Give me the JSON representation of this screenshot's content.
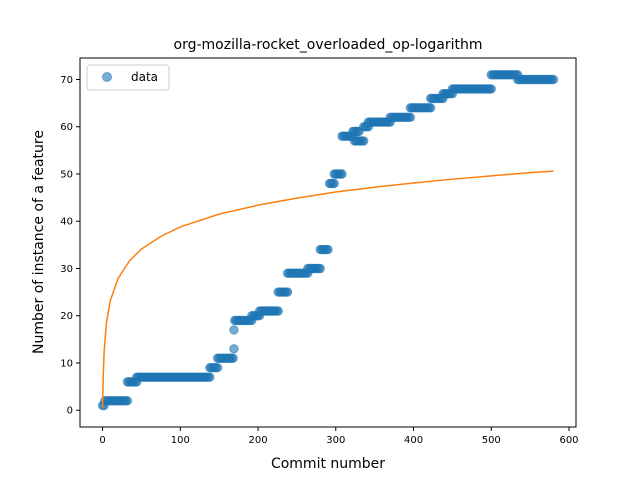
{
  "chart_data": {
    "type": "scatter",
    "title": "org-mozilla-rocket_overloaded_op-logarithm",
    "xlabel": "Commit number",
    "ylabel": "Number of instance of a feature",
    "xlim": [
      -29,
      609
    ],
    "ylim": [
      -3.55,
      74.55
    ],
    "xticks": [
      0,
      100,
      200,
      300,
      400,
      500,
      600
    ],
    "yticks": [
      0,
      10,
      20,
      30,
      40,
      50,
      60,
      70
    ],
    "grid": false,
    "legend": {
      "position": "top-left",
      "entries": [
        "data"
      ]
    },
    "series": [
      {
        "name": "data",
        "kind": "scatter",
        "color": "#1f77b4",
        "segments": [
          {
            "x_start": 0,
            "x_end": 2,
            "y": 1
          },
          {
            "x_start": 3,
            "x_end": 32,
            "y": 2
          },
          {
            "x_start": 32,
            "x_end": 44,
            "y": 6
          },
          {
            "x_start": 44,
            "x_end": 138,
            "y": 7
          },
          {
            "x_start": 138,
            "x_end": 148,
            "y": 9
          },
          {
            "x_start": 148,
            "x_end": 168,
            "y": 11
          },
          {
            "x_start": 169,
            "x_end": 169,
            "y": 13
          },
          {
            "x_start": 169,
            "x_end": 169,
            "y": 17
          },
          {
            "x_start": 170,
            "x_end": 192,
            "y": 19
          },
          {
            "x_start": 192,
            "x_end": 202,
            "y": 20
          },
          {
            "x_start": 202,
            "x_end": 226,
            "y": 21
          },
          {
            "x_start": 226,
            "x_end": 238,
            "y": 25
          },
          {
            "x_start": 238,
            "x_end": 264,
            "y": 29
          },
          {
            "x_start": 264,
            "x_end": 280,
            "y": 30
          },
          {
            "x_start": 280,
            "x_end": 290,
            "y": 34
          },
          {
            "x_start": 292,
            "x_end": 298,
            "y": 48
          },
          {
            "x_start": 298,
            "x_end": 308,
            "y": 50
          },
          {
            "x_start": 308,
            "x_end": 322,
            "y": 58
          },
          {
            "x_start": 322,
            "x_end": 330,
            "y": 59
          },
          {
            "x_start": 324,
            "x_end": 336,
            "y": 57
          },
          {
            "x_start": 336,
            "x_end": 342,
            "y": 60
          },
          {
            "x_start": 342,
            "x_end": 370,
            "y": 61
          },
          {
            "x_start": 370,
            "x_end": 396,
            "y": 62
          },
          {
            "x_start": 396,
            "x_end": 422,
            "y": 64
          },
          {
            "x_start": 422,
            "x_end": 438,
            "y": 66
          },
          {
            "x_start": 438,
            "x_end": 450,
            "y": 67
          },
          {
            "x_start": 450,
            "x_end": 500,
            "y": 68
          },
          {
            "x_start": 500,
            "x_end": 534,
            "y": 71
          },
          {
            "x_start": 534,
            "x_end": 580,
            "y": 70
          }
        ]
      },
      {
        "kind": "line",
        "color": "#ff7f0e",
        "function": "logarithmic",
        "x": [
          0,
          1,
          2,
          5,
          10,
          20,
          35,
          50,
          75,
          100,
          150,
          200,
          250,
          300,
          350,
          400,
          450,
          500,
          550,
          580
        ],
        "y": [
          0.5,
          7.7,
          12.3,
          18.5,
          23.2,
          27.9,
          31.7,
          34.1,
          36.8,
          38.8,
          41.5,
          43.4,
          44.9,
          46.2,
          47.2,
          48.1,
          48.9,
          49.6,
          50.3,
          50.6
        ]
      }
    ]
  }
}
